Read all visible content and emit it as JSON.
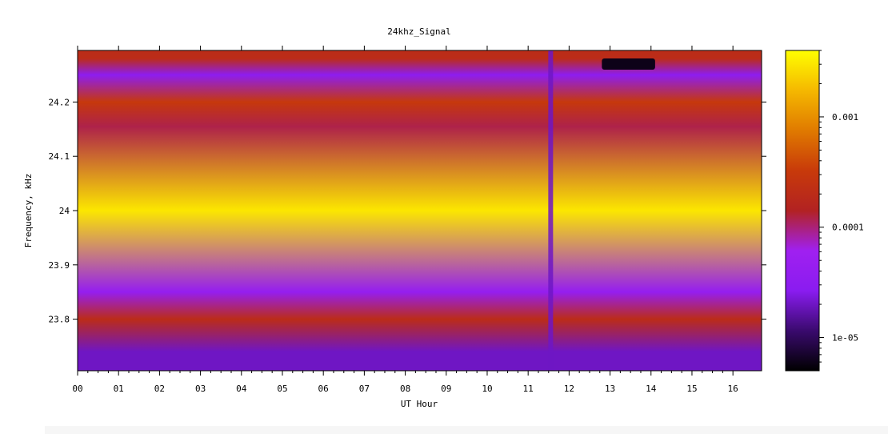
{
  "chart_data": {
    "type": "heatmap",
    "title": "24khz_Signal",
    "xlabel": "UT Hour",
    "ylabel": "Frequency, kHz",
    "xlim": [
      0,
      16.7
    ],
    "ylim": [
      23.705,
      24.295
    ],
    "x_ticks": [
      "00",
      "01",
      "02",
      "03",
      "04",
      "05",
      "06",
      "07",
      "08",
      "09",
      "10",
      "11",
      "12",
      "13",
      "14",
      "15",
      "16"
    ],
    "y_ticks": [
      {
        "value": 23.8,
        "label": "23.8"
      },
      {
        "value": 23.9,
        "label": "23.9"
      },
      {
        "value": 24.0,
        "label": "24"
      },
      {
        "value": 24.1,
        "label": "24.1"
      },
      {
        "value": 24.2,
        "label": "24.2"
      }
    ],
    "colorbar": {
      "scale": "log",
      "range": [
        5e-06,
        0.004
      ],
      "ticks": [
        {
          "value": 0.001,
          "label": "0.001"
        },
        {
          "value": 0.0001,
          "label": "0.0001"
        },
        {
          "value": 1e-05,
          "label": "1e-05"
        }
      ],
      "colormap": [
        "#000000",
        "#3a0a6e",
        "#8a1cf0",
        "#a020f0",
        "#b22222",
        "#c83a0a",
        "#e07a00",
        "#f5b800",
        "#ffff00"
      ]
    },
    "bands": [
      {
        "freq": 24.28,
        "level": 0.0002
      },
      {
        "freq": 24.25,
        "level": 3e-05
      },
      {
        "freq": 24.2,
        "level": 0.0003
      },
      {
        "freq": 24.155,
        "level": 0.00012
      },
      {
        "freq": 24.0,
        "level": 0.003
      },
      {
        "freq": 23.85,
        "level": 4e-05
      },
      {
        "freq": 23.8,
        "level": 0.0002
      },
      {
        "freq": 23.74,
        "level": 2e-05
      }
    ],
    "features": [
      {
        "type": "vertical_dip",
        "hour": 11.55,
        "level": 2e-05
      },
      {
        "type": "dark_patch",
        "hours": [
          12.8,
          14.1
        ],
        "freq": 24.27,
        "level": 6e-06
      }
    ]
  }
}
